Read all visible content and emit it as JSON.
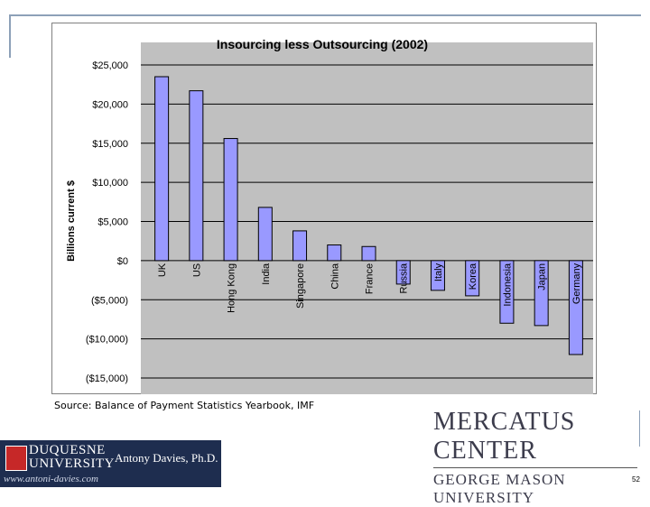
{
  "chart_data": {
    "type": "bar",
    "title": "Insourcing less Outsourcing (2002)",
    "ylabel": "Billions current $",
    "xlabel": "",
    "ylim": [
      -15000,
      25000
    ],
    "yticks": [
      25000,
      20000,
      15000,
      10000,
      5000,
      0,
      -5000,
      -10000,
      -15000
    ],
    "ytick_labels": [
      "$25,000",
      "$20,000",
      "$15,000",
      "$10,000",
      "$5,000",
      "$0",
      "($5,000)",
      "($10,000)",
      "($15,000)"
    ],
    "categories": [
      "UK",
      "US",
      "Hong Kong",
      "India",
      "Singapore",
      "China",
      "France",
      "Russia",
      "Italy",
      "Korea",
      "Indonesia",
      "Japan",
      "Germany"
    ],
    "values": [
      23500,
      21700,
      15600,
      6800,
      3800,
      2000,
      1800,
      -3000,
      -3800,
      -4500,
      -8000,
      -8300,
      -12000
    ],
    "grid": true,
    "legend": "none",
    "colors": {
      "bar": "#9999ff",
      "bar_edge": "#000000",
      "plot_bg": "#c0c0c0",
      "grid": "#000000"
    }
  },
  "source": "Source: Balance of Payment Statistics Yearbook, IMF",
  "branding": {
    "mercatus_line1": "MERCATUS CENTER",
    "mercatus_line2": "GEORGE MASON UNIVERSITY",
    "university_line1": "DUQUESNE",
    "university_line2": "UNIVERSITY",
    "author": "Antony Davies, Ph.D.",
    "website": "www.antoni-davies.com"
  },
  "page_number": "52"
}
